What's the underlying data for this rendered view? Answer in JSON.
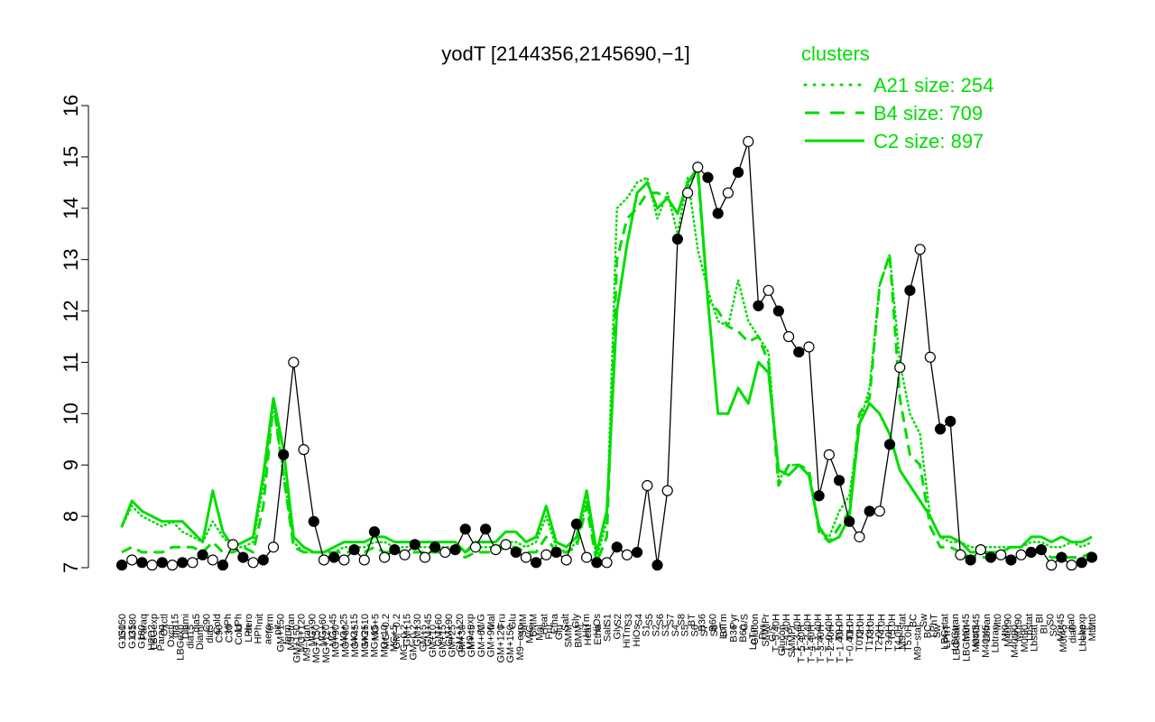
{
  "chart_data": {
    "type": "line",
    "title": "yodT [2144356,2145690,−1]",
    "ylim": [
      7,
      16
    ],
    "yticks": [
      7,
      8,
      9,
      10,
      11,
      12,
      13,
      14,
      15,
      16
    ],
    "grid": false,
    "legend_position": "top-right",
    "legend_title": "clusters",
    "colors": {
      "series": "#00dd00",
      "point_filled": "#000000",
      "point_open": "#ffffff"
    },
    "x_tick_labels_row1": [
      "G150",
      "G180",
      "Paraq",
      "LBGexp",
      "Oxctl",
      "dia15",
      "Diami",
      "dia5",
      "C90",
      "Cold",
      "HPh",
      "LPh",
      "aero",
      "nit",
      "ferm",
      "GM+150",
      "M9−tran",
      "MG+120",
      "MG+90",
      "MG+60",
      "MG+45",
      "MG+25",
      "MG+15",
      "MG+10",
      "MG+5",
      "MG−0.2",
      "GM−0.2",
      "GM+15",
      "GM+30",
      "GM+45",
      "GM+60",
      "GM+90",
      "GM+120",
      "M9−exp",
      "M/G",
      "Mal",
      "Fru",
      "Glu",
      "SMM",
      "BMM",
      "Heat",
      "Etha",
      "Salt",
      "Gly",
      "HiTm",
      "HiOs",
      "S1",
      "S2",
      "S3",
      "S4",
      "S5",
      "S6",
      "S7",
      "S8",
      "BT",
      "B36",
      "B60",
      "LoTm",
      "Pyr",
      "G/S",
      "Glucon",
      "SMMPr",
      "T−5.40H",
      "T−4.40H",
      "T−3.40H",
      "T−2.40H",
      "T−1.40H",
      "T−0.40H",
      "T0.0H",
      "T1.0H",
      "T2.0H",
      "T3.0H",
      "T4.0H",
      "T5.0H",
      "M9−stat",
      "BC",
      "Sw",
      "LPhT",
      "LBGstat",
      "LBGtran",
      "M0t45",
      "M40t45",
      "Lbtran",
      "Mt0",
      "M40t90",
      "M0t90",
      "Lbstat",
      "BI",
      "S0",
      "M0t45",
      "dia0",
      "Lbexp",
      "Mt0"
    ],
    "x_tick_labels_row2": [
      "G150",
      "G135",
      "G180",
      "H2O2",
      "Paraq",
      "Oxctl",
      "LBGexp",
      "dia15",
      "Diami",
      "dia5",
      "C90",
      "C30",
      "Cold",
      "LPh",
      "HPh",
      "aero",
      "nit",
      "ferm",
      "GM+150",
      "M9−tran",
      "MG+150",
      "MG+120",
      "MG+90",
      "MG+60",
      "MG+45",
      "MG+25",
      "MG+15",
      "MG+10",
      "MG+5",
      "MG−0.2",
      "GM−0.2",
      "GM+5",
      "GM+10",
      "GM+15",
      "GM+25",
      "GM+30",
      "GM+45",
      "GM+60",
      "GM+90",
      "GM+120",
      "GM+150",
      "M9−exp",
      "M/G",
      "Mal",
      "Fru",
      "Glu",
      "SMM",
      "BMM",
      "Heat",
      "Etha",
      "Salt",
      "Gly",
      "HiTm",
      "HiOs",
      "S1",
      "S2",
      "S3",
      "S4",
      "S5",
      "S6",
      "S7",
      "S8",
      "BT",
      "B36",
      "B60",
      "LoTm",
      "Pyr",
      "G/S",
      "Glucon",
      "SMMPr",
      "T−5.40H",
      "T−4.40H",
      "T−3.40H",
      "T−2.40H",
      "T−1.40H",
      "T−0.40H",
      "T0.0H",
      "T1.0H",
      "T2.0H",
      "T3.0H",
      "T4.0H",
      "T5.0H",
      "M9−stat",
      "BC",
      "Sw",
      "LPhT",
      "LBGstat",
      "LBGtran",
      "M0t45",
      "M40t45",
      "Lbtran",
      "Mt0",
      "M40t90",
      "M0t90",
      "Lbstat",
      "BI",
      "S0",
      "M0t45",
      "dia0",
      "Lbexp",
      "Mt0"
    ],
    "series": [
      {
        "name": "A21 size: 254",
        "style": "dotted",
        "values": [
          7.8,
          8.2,
          8.0,
          7.9,
          7.8,
          7.9,
          7.7,
          7.6,
          7.5,
          7.9,
          7.6,
          7.4,
          7.4,
          7.5,
          8.6,
          10.2,
          8.8,
          7.5,
          7.3,
          7.3,
          7.3,
          7.3,
          7.4,
          7.4,
          7.4,
          7.5,
          7.5,
          7.4,
          7.4,
          7.4,
          7.4,
          7.4,
          7.4,
          7.4,
          7.3,
          7.4,
          7.4,
          7.4,
          7.5,
          7.5,
          7.4,
          7.5,
          8.0,
          7.4,
          7.3,
          7.5,
          8.3,
          7.2,
          7.9,
          14.0,
          14.2,
          14.5,
          14.6,
          13.8,
          14.3,
          13.5,
          14.6,
          13.2,
          12.4,
          11.8,
          11.7,
          12.6,
          11.8,
          11.5,
          11.2,
          8.7,
          9.0,
          9.0,
          8.8,
          7.7,
          7.6,
          8.1,
          8.4,
          9.8,
          10.5,
          12.5,
          13.1,
          11.0,
          10.0,
          9.6,
          8.0,
          7.6,
          7.5,
          7.5,
          7.4,
          7.4,
          7.4,
          7.4,
          7.4,
          7.4,
          7.5,
          7.5,
          7.4,
          7.4,
          7.5,
          7.4,
          7.5
        ]
      },
      {
        "name": "B4 size: 709",
        "style": "dashed",
        "values": [
          7.3,
          7.4,
          7.3,
          7.3,
          7.3,
          7.4,
          7.4,
          7.4,
          7.3,
          7.5,
          7.3,
          7.3,
          7.4,
          7.3,
          8.2,
          10.2,
          8.8,
          7.4,
          7.3,
          7.3,
          7.3,
          7.3,
          7.3,
          7.3,
          7.3,
          7.4,
          7.3,
          7.3,
          7.3,
          7.3,
          7.3,
          7.3,
          7.3,
          7.3,
          7.2,
          7.3,
          7.3,
          7.3,
          7.4,
          7.4,
          7.3,
          7.3,
          7.6,
          7.3,
          7.3,
          7.4,
          8.2,
          7.1,
          7.6,
          13.0,
          13.8,
          14.0,
          14.3,
          14.3,
          14.2,
          13.9,
          14.5,
          14.7,
          12.2,
          12.0,
          11.7,
          11.6,
          11.4,
          11.5,
          11.0,
          8.6,
          9.0,
          9.0,
          8.9,
          7.7,
          7.5,
          7.8,
          8.1,
          10.0,
          10.3,
          12.5,
          13.1,
          10.3,
          9.2,
          9.0,
          7.8,
          7.4,
          7.4,
          7.3,
          7.2,
          7.2,
          7.2,
          7.2,
          7.2,
          7.2,
          7.3,
          7.3,
          7.2,
          7.2,
          7.2,
          7.2,
          7.3
        ]
      },
      {
        "name": "C2 size: 897",
        "style": "solid",
        "values": [
          7.8,
          8.3,
          8.1,
          8.0,
          7.9,
          7.9,
          7.9,
          7.7,
          7.5,
          8.5,
          7.7,
          7.4,
          7.5,
          7.6,
          8.8,
          10.3,
          9.3,
          7.6,
          7.4,
          7.3,
          7.3,
          7.4,
          7.5,
          7.5,
          7.5,
          7.6,
          7.6,
          7.5,
          7.5,
          7.5,
          7.5,
          7.5,
          7.5,
          7.5,
          7.3,
          7.5,
          7.5,
          7.5,
          7.7,
          7.7,
          7.5,
          7.6,
          8.2,
          7.5,
          7.4,
          7.6,
          8.5,
          7.3,
          8.1,
          12.0,
          13.3,
          14.3,
          14.5,
          14.0,
          14.2,
          13.9,
          14.5,
          14.8,
          12.2,
          10.0,
          10.0,
          10.5,
          10.2,
          11.0,
          10.8,
          8.9,
          8.8,
          9.0,
          8.8,
          7.8,
          7.5,
          7.6,
          8.0,
          9.8,
          10.2,
          10.0,
          9.6,
          8.9,
          8.6,
          8.3,
          8.0,
          7.6,
          7.6,
          7.5,
          7.3,
          7.3,
          7.3,
          7.3,
          7.4,
          7.4,
          7.6,
          7.6,
          7.5,
          7.6,
          7.5,
          7.5,
          7.6
        ]
      }
    ],
    "points": [
      {
        "x": 0,
        "y": 7.05,
        "f": 1
      },
      {
        "x": 1,
        "y": 7.15,
        "f": 0
      },
      {
        "x": 2,
        "y": 7.1,
        "f": 1
      },
      {
        "x": 3,
        "y": 7.05,
        "f": 0
      },
      {
        "x": 4,
        "y": 7.1,
        "f": 1
      },
      {
        "x": 5,
        "y": 7.05,
        "f": 0
      },
      {
        "x": 6,
        "y": 7.1,
        "f": 1
      },
      {
        "x": 7,
        "y": 7.1,
        "f": 0
      },
      {
        "x": 8,
        "y": 7.25,
        "f": 1
      },
      {
        "x": 9,
        "y": 7.15,
        "f": 0
      },
      {
        "x": 10,
        "y": 7.05,
        "f": 1
      },
      {
        "x": 11,
        "y": 7.45,
        "f": 0
      },
      {
        "x": 12,
        "y": 7.2,
        "f": 1
      },
      {
        "x": 13,
        "y": 7.1,
        "f": 0
      },
      {
        "x": 14,
        "y": 7.15,
        "f": 1
      },
      {
        "x": 15,
        "y": 7.4,
        "f": 0
      },
      {
        "x": 16,
        "y": 9.2,
        "f": 1
      },
      {
        "x": 17,
        "y": 11.0,
        "f": 0
      },
      {
        "x": 18,
        "y": 9.3,
        "f": 0
      },
      {
        "x": 19,
        "y": 7.9,
        "f": 1
      },
      {
        "x": 20,
        "y": 7.15,
        "f": 0
      },
      {
        "x": 21,
        "y": 7.2,
        "f": 1
      },
      {
        "x": 22,
        "y": 7.15,
        "f": 0
      },
      {
        "x": 23,
        "y": 7.35,
        "f": 1
      },
      {
        "x": 24,
        "y": 7.15,
        "f": 0
      },
      {
        "x": 25,
        "y": 7.7,
        "f": 1
      },
      {
        "x": 26,
        "y": 7.2,
        "f": 0
      },
      {
        "x": 27,
        "y": 7.35,
        "f": 1
      },
      {
        "x": 28,
        "y": 7.25,
        "f": 0
      },
      {
        "x": 29,
        "y": 7.45,
        "f": 1
      },
      {
        "x": 30,
        "y": 7.2,
        "f": 0
      },
      {
        "x": 31,
        "y": 7.4,
        "f": 1
      },
      {
        "x": 32,
        "y": 7.3,
        "f": 0
      },
      {
        "x": 33,
        "y": 7.35,
        "f": 1
      },
      {
        "x": 34,
        "y": 7.75,
        "f": 1
      },
      {
        "x": 35,
        "y": 7.4,
        "f": 0
      },
      {
        "x": 36,
        "y": 7.75,
        "f": 1
      },
      {
        "x": 37,
        "y": 7.35,
        "f": 0
      },
      {
        "x": 38,
        "y": 7.45,
        "f": 0
      },
      {
        "x": 39,
        "y": 7.3,
        "f": 1
      },
      {
        "x": 40,
        "y": 7.2,
        "f": 0
      },
      {
        "x": 41,
        "y": 7.1,
        "f": 1
      },
      {
        "x": 42,
        "y": 7.25,
        "f": 0
      },
      {
        "x": 43,
        "y": 7.3,
        "f": 1
      },
      {
        "x": 44,
        "y": 7.15,
        "f": 0
      },
      {
        "x": 45,
        "y": 7.85,
        "f": 1
      },
      {
        "x": 46,
        "y": 7.2,
        "f": 0
      },
      {
        "x": 47,
        "y": 7.1,
        "f": 1
      },
      {
        "x": 48,
        "y": 7.1,
        "f": 0
      },
      {
        "x": 49,
        "y": 7.4,
        "f": 1
      },
      {
        "x": 50,
        "y": 7.25,
        "f": 0
      },
      {
        "x": 51,
        "y": 7.3,
        "f": 1
      },
      {
        "x": 52,
        "y": 8.6,
        "f": 0
      },
      {
        "x": 53,
        "y": 7.05,
        "f": 1
      },
      {
        "x": 54,
        "y": 8.5,
        "f": 0
      },
      {
        "x": 55,
        "y": 13.4,
        "f": 1
      },
      {
        "x": 56,
        "y": 14.3,
        "f": 0
      },
      {
        "x": 57,
        "y": 14.8,
        "f": 0
      },
      {
        "x": 58,
        "y": 14.6,
        "f": 1
      },
      {
        "x": 59,
        "y": 13.9,
        "f": 1
      },
      {
        "x": 60,
        "y": 14.3,
        "f": 0
      },
      {
        "x": 61,
        "y": 14.7,
        "f": 1
      },
      {
        "x": 62,
        "y": 15.3,
        "f": 0
      },
      {
        "x": 63,
        "y": 12.1,
        "f": 1
      },
      {
        "x": 64,
        "y": 12.4,
        "f": 0
      },
      {
        "x": 65,
        "y": 12.0,
        "f": 1
      },
      {
        "x": 66,
        "y": 11.5,
        "f": 0
      },
      {
        "x": 67,
        "y": 11.2,
        "f": 1
      },
      {
        "x": 68,
        "y": 11.3,
        "f": 0
      },
      {
        "x": 69,
        "y": 8.4,
        "f": 1
      },
      {
        "x": 70,
        "y": 9.2,
        "f": 0
      },
      {
        "x": 71,
        "y": 8.7,
        "f": 1
      },
      {
        "x": 72,
        "y": 7.9,
        "f": 1
      },
      {
        "x": 73,
        "y": 7.6,
        "f": 0
      },
      {
        "x": 74,
        "y": 8.1,
        "f": 1
      },
      {
        "x": 75,
        "y": 8.1,
        "f": 0
      },
      {
        "x": 76,
        "y": 9.4,
        "f": 1
      },
      {
        "x": 77,
        "y": 10.9,
        "f": 0
      },
      {
        "x": 78,
        "y": 12.4,
        "f": 1
      },
      {
        "x": 79,
        "y": 13.2,
        "f": 0
      },
      {
        "x": 80,
        "y": 11.1,
        "f": 0
      },
      {
        "x": 81,
        "y": 9.7,
        "f": 1
      },
      {
        "x": 82,
        "y": 9.85,
        "f": 1
      },
      {
        "x": 83,
        "y": 7.25,
        "f": 0
      },
      {
        "x": 84,
        "y": 7.15,
        "f": 1
      },
      {
        "x": 85,
        "y": 7.35,
        "f": 0
      },
      {
        "x": 86,
        "y": 7.2,
        "f": 1
      },
      {
        "x": 87,
        "y": 7.25,
        "f": 0
      },
      {
        "x": 88,
        "y": 7.15,
        "f": 1
      },
      {
        "x": 89,
        "y": 7.25,
        "f": 0
      },
      {
        "x": 90,
        "y": 7.3,
        "f": 1
      },
      {
        "x": 91,
        "y": 7.35,
        "f": 1
      },
      {
        "x": 92,
        "y": 7.05,
        "f": 0
      },
      {
        "x": 93,
        "y": 7.2,
        "f": 1
      },
      {
        "x": 94,
        "y": 7.05,
        "f": 0
      },
      {
        "x": 95,
        "y": 7.1,
        "f": 1
      },
      {
        "x": 96,
        "y": 7.2,
        "f": 1
      }
    ]
  }
}
